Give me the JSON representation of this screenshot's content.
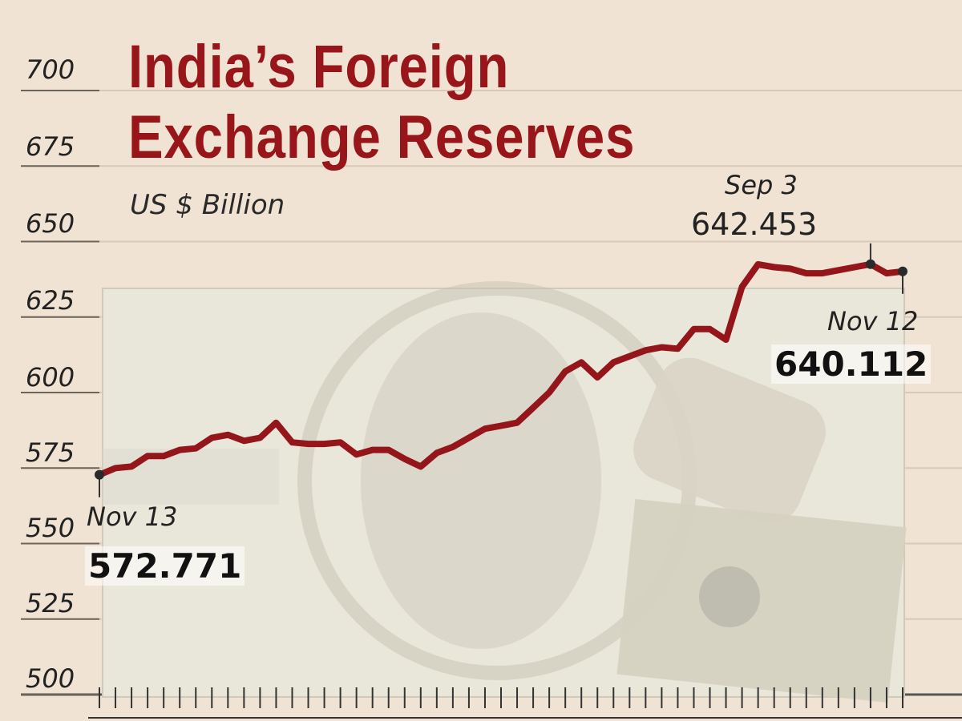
{
  "chart_data": {
    "type": "line",
    "title_lines": [
      "India’s Foreign",
      "Exchange Reserves"
    ],
    "subtitle": "US $ Billion",
    "ylim": [
      500,
      700
    ],
    "yticks": [
      700,
      675,
      650,
      625,
      600,
      575,
      550,
      525,
      500
    ],
    "grid": true,
    "series": [
      {
        "values": [
          572.771,
          575,
          575.5,
          579,
          579,
          581,
          581.5,
          585,
          586,
          584,
          585,
          590,
          583.5,
          583,
          583,
          583.5,
          579.5,
          581,
          581,
          578,
          575.5,
          580,
          582,
          585,
          588,
          589,
          590,
          595,
          600,
          607,
          610,
          605,
          610,
          612,
          614,
          615,
          614.5,
          621,
          621,
          617.5,
          635,
          642.453,
          641.5,
          641,
          639.5,
          639.5,
          640.5,
          641.5,
          642.5,
          639.5,
          640.112
        ]
      }
    ],
    "annotations": [
      {
        "date": "Nov 13",
        "value": "572.771"
      },
      {
        "date": "Sep 3",
        "value": "642.453"
      },
      {
        "date": "Nov 12",
        "value": "640.112"
      }
    ],
    "colors": {
      "line": "#95161a",
      "grid": "#d8c9b8",
      "background": "#f1e3d3",
      "title": "#98161a",
      "banknote": "#e9e6da"
    }
  }
}
